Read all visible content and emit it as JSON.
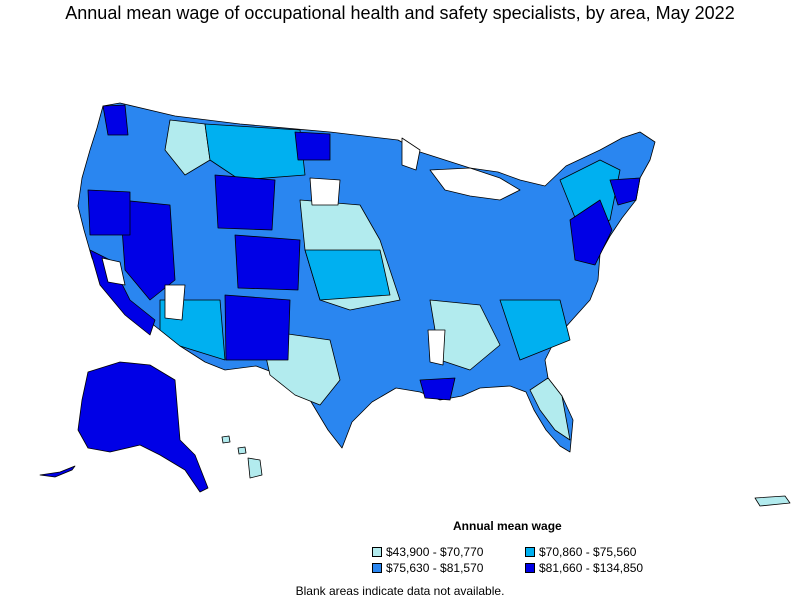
{
  "title": "Annual mean wage of occupational health and safety specialists, by area, May 2022",
  "legend": {
    "title": "Annual mean wage",
    "items": [
      {
        "label": "$43,900 - $70,770",
        "color": "#b2ebee"
      },
      {
        "label": "$70,860 - $75,560",
        "color": "#00b0f0"
      },
      {
        "label": "$75,630 - $81,570",
        "color": "#2a86f0"
      },
      {
        "label": "$81,660 - $134,850",
        "color": "#0000e6"
      }
    ]
  },
  "note": "Blank areas indicate data not available."
}
